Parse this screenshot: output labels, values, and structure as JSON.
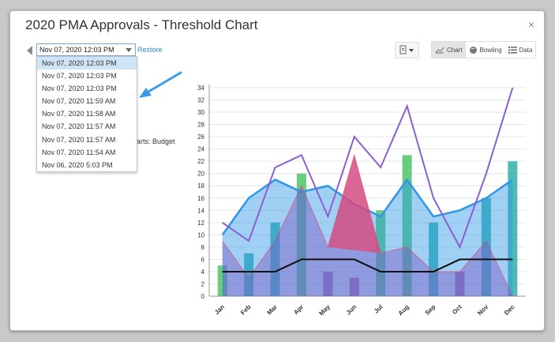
{
  "dialog": {
    "title": "2020 PMA Approvals - Threshold Chart",
    "close_label": "×"
  },
  "version_select": {
    "selected": "Nov 07, 2020 12:03 PM",
    "restore_label": "Restore",
    "options": [
      "Nov 07, 2020 12:03 PM",
      "Nov 07, 2020 12:03 PM",
      "Nov 07, 2020 12:03 PM",
      "Nov 07, 2020 11:59 AM",
      "Nov 07, 2020 11:58 AM",
      "Nov 07, 2020 11:57 AM",
      "Nov 07, 2020 11:57 AM",
      "Nov 07, 2020 11:54 AM",
      "Nov 06, 2020 5:03 PM"
    ],
    "highlighted_index": 0
  },
  "partial_text": "arts: Budget",
  "view_toggle": {
    "chart_label": "Chart",
    "bowling_label": "Bowling",
    "data_label": "Data",
    "active": "Chart"
  },
  "colors": {
    "blue": "#2f96e8",
    "purple": "#8a5fd1",
    "green": "#4cc56a",
    "teal": "#2fb0a8",
    "red": "#e44673",
    "black": "#111111"
  },
  "chart_data": {
    "type": "bar",
    "categories": [
      "Jan",
      "Feb",
      "Mar",
      "Apr",
      "May",
      "Jun",
      "Jul",
      "Aug",
      "Sep",
      "Oct",
      "Nov",
      "Dec"
    ],
    "ylim": [
      0,
      34
    ],
    "yticks": [
      0,
      2,
      4,
      6,
      8,
      10,
      12,
      14,
      16,
      18,
      20,
      22,
      24,
      26,
      28,
      30,
      32,
      34
    ],
    "series": [
      {
        "type": "bar",
        "values": [
          5,
          7,
          12,
          20,
          4,
          3,
          14,
          23,
          12,
          4,
          16,
          22
        ]
      },
      {
        "type": "area",
        "values": [
          10,
          16,
          19,
          17,
          18,
          15,
          13,
          19,
          13,
          14,
          16,
          19
        ]
      },
      {
        "type": "line",
        "values": [
          12,
          9,
          21,
          23,
          13,
          26,
          21,
          31,
          16,
          8,
          20,
          34
        ]
      },
      {
        "type": "line",
        "values": [
          4,
          4,
          4,
          6,
          6,
          6,
          4,
          4,
          4,
          6,
          6,
          6
        ]
      },
      {
        "type": "area",
        "values": [
          9,
          3,
          9,
          18,
          8,
          23,
          7,
          8,
          4,
          4,
          9,
          0
        ]
      }
    ]
  }
}
